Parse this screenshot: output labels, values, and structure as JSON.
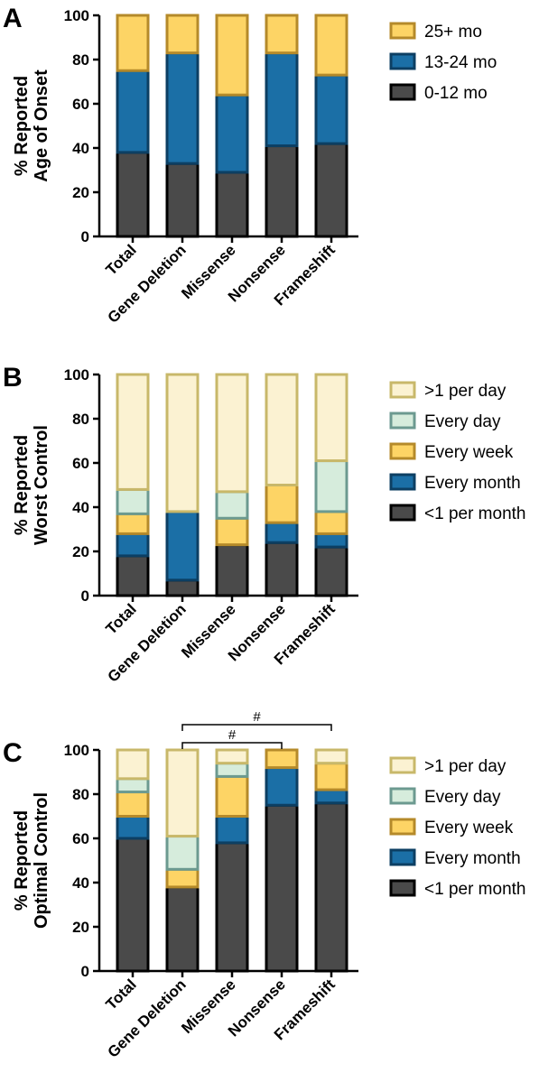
{
  "chart_data": [
    {
      "type": "bar",
      "panel": "A",
      "ylabel_lines": [
        "% Reported",
        "Age of Onset"
      ],
      "ylim": [
        0,
        100
      ],
      "yticks": [
        0,
        20,
        40,
        60,
        80,
        100
      ],
      "categories": [
        "Total",
        "Gene Deletion",
        "Missense",
        "Nonsense",
        "Frameshift"
      ],
      "series": [
        {
          "name": "0-12 mo",
          "fill": "#4a4a4a",
          "edge": "#000000",
          "values": [
            38,
            33,
            29,
            41,
            42
          ]
        },
        {
          "name": "13-24 mo",
          "fill": "#1b6fa6",
          "edge": "#0c3f63",
          "values": [
            37,
            50,
            35,
            42,
            31
          ]
        },
        {
          "name": "25+ mo",
          "fill": "#fdd465",
          "edge": "#b58a2a",
          "values": [
            25,
            17,
            36,
            17,
            27
          ]
        }
      ]
    },
    {
      "type": "bar",
      "panel": "B",
      "ylabel_lines": [
        "% Reported",
        "Worst Control"
      ],
      "ylim": [
        0,
        100
      ],
      "yticks": [
        0,
        20,
        40,
        60,
        80,
        100
      ],
      "categories": [
        "Total",
        "Gene Deletion",
        "Missense",
        "Nonsense",
        "Frameshift"
      ],
      "series": [
        {
          "name": "<1 per month",
          "fill": "#4a4a4a",
          "edge": "#000000",
          "values": [
            18,
            7,
            23,
            24,
            22
          ]
        },
        {
          "name": "Every month",
          "fill": "#1b6fa6",
          "edge": "#0c3f63",
          "values": [
            10,
            31,
            0,
            9,
            6
          ]
        },
        {
          "name": "Every week",
          "fill": "#fdd465",
          "edge": "#b58a2a",
          "values": [
            9,
            0,
            12,
            17,
            10
          ]
        },
        {
          "name": "Every day",
          "fill": "#d6ecdc",
          "edge": "#6c9a90",
          "values": [
            11,
            0,
            12,
            0,
            23
          ]
        },
        {
          "name": ">1 per day",
          "fill": "#fbf2d2",
          "edge": "#c8b86a",
          "values": [
            52,
            62,
            53,
            50,
            39
          ]
        }
      ]
    },
    {
      "type": "bar",
      "panel": "C",
      "ylabel_lines": [
        "% Reported",
        "Optimal Control"
      ],
      "ylim": [
        0,
        100
      ],
      "yticks": [
        0,
        20,
        40,
        60,
        80,
        100
      ],
      "categories": [
        "Total",
        "Gene Deletion",
        "Missense",
        "Nonsense",
        "Frameshift"
      ],
      "series": [
        {
          "name": "<1 per month",
          "fill": "#4a4a4a",
          "edge": "#000000",
          "values": [
            60,
            38,
            58,
            75,
            76
          ]
        },
        {
          "name": "Every month",
          "fill": "#1b6fa6",
          "edge": "#0c3f63",
          "values": [
            10,
            0,
            12,
            17,
            6
          ]
        },
        {
          "name": "Every week",
          "fill": "#fdd465",
          "edge": "#b58a2a",
          "values": [
            11,
            8,
            18,
            8,
            12
          ]
        },
        {
          "name": "Every day",
          "fill": "#d6ecdc",
          "edge": "#6c9a90",
          "values": [
            6,
            15,
            6,
            0,
            0
          ]
        },
        {
          "name": ">1 per day",
          "fill": "#fbf2d2",
          "edge": "#c8b86a",
          "values": [
            13,
            39,
            6,
            0,
            6
          ]
        }
      ],
      "annotations": [
        {
          "from": "Gene Deletion",
          "to": "Nonsense",
          "label": "#"
        },
        {
          "from": "Gene Deletion",
          "to": "Frameshift",
          "label": "#"
        }
      ]
    }
  ]
}
